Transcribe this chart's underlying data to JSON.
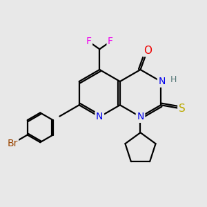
{
  "bg_color": "#e8e8e8",
  "atom_colors": {
    "C": "#000000",
    "N": "#0000ee",
    "O": "#ee0000",
    "S": "#bbaa00",
    "F": "#ee00ee",
    "Br": "#994400",
    "H": "#557777"
  },
  "bond_color": "#000000",
  "bond_width": 1.6,
  "font_size": 10
}
